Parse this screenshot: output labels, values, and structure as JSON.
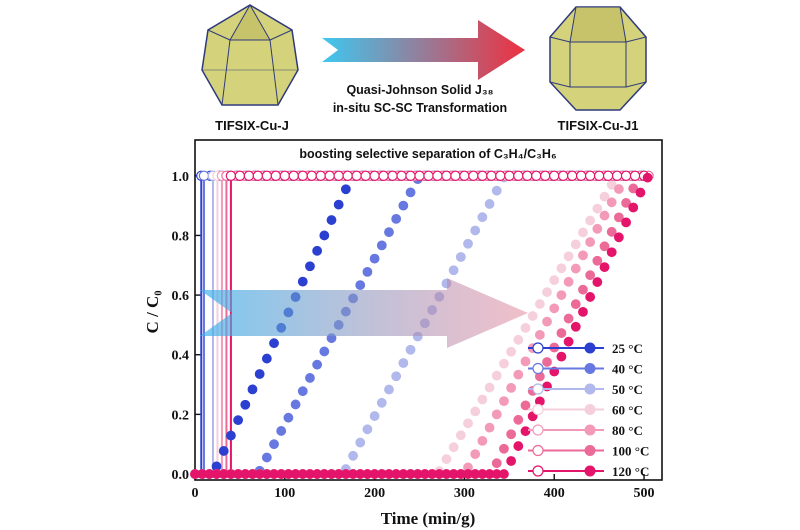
{
  "header": {
    "left_label": "TIFSIX-Cu-J",
    "right_label": "TIFSIX-Cu-J1",
    "transform_line1": "Quasi-Johnson Solid J₃₈",
    "transform_line2": "in-situ SC-SC Transformation"
  },
  "colors": {
    "crystal_fill": "#d4d27a",
    "crystal_edge": "#2f3a7a",
    "arrow_start": "#3ec8f0",
    "arrow_end": "#ee3040"
  },
  "chart_data": {
    "type": "line",
    "title": "boosting selective separation of C₃H₄/C₃H₆",
    "xlabel": "Time (min/g)",
    "ylabel": "C / C₀",
    "xlim": [
      0,
      520
    ],
    "ylim": [
      -0.02,
      1.12
    ],
    "xticks": [
      "0",
      "100",
      "200",
      "300",
      "400",
      "500"
    ],
    "yticks": [
      "0.0",
      "0.2",
      "0.4",
      "0.6",
      "0.8",
      "1.0"
    ],
    "legend_position": "bottom-right",
    "grid": false,
    "series": [
      {
        "name": "25 °C",
        "color": "#2b3fd0",
        "propylene_breakthrough": 7,
        "propyne_start": 20,
        "propyne_end": 175
      },
      {
        "name": "40 °C",
        "color": "#6778e0",
        "propylene_breakthrough": 10,
        "propyne_start": 70,
        "propyne_end": 250
      },
      {
        "name": "50 °C",
        "color": "#b0b8ec",
        "propylene_breakthrough": 20,
        "propyne_start": 165,
        "propyne_end": 345
      },
      {
        "name": "60 °C",
        "color": "#f6cfdc",
        "propylene_breakthrough": 25,
        "propyne_start": 270,
        "propyne_end": 470
      },
      {
        "name": "80 °C",
        "color": "#f39ab8",
        "propylene_breakthrough": 30,
        "propyne_start": 300,
        "propyne_end": 480
      },
      {
        "name": "100 °C",
        "color": "#ec6a98",
        "propylene_breakthrough": 35,
        "propyne_start": 330,
        "propyne_end": 495
      },
      {
        "name": "120 °C",
        "color": "#e3146a",
        "propylene_breakthrough": 40,
        "propyne_start": 345,
        "propyne_end": 505
      }
    ]
  }
}
